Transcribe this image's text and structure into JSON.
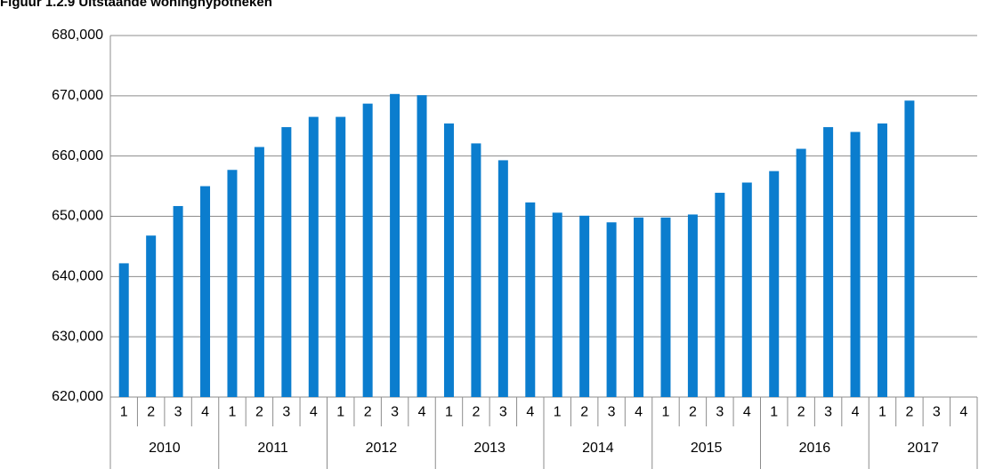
{
  "chart_data": {
    "type": "bar",
    "title": "Figuur 1.2.9 Uitstaande woninghypotheken",
    "categories": [
      "1",
      "2",
      "3",
      "4",
      "1",
      "2",
      "3",
      "4",
      "1",
      "2",
      "3",
      "4",
      "1",
      "2",
      "3",
      "4",
      "1",
      "2",
      "3",
      "4",
      "1",
      "2",
      "3",
      "4",
      "1",
      "2",
      "3",
      "4",
      "1",
      "2",
      "3",
      "4"
    ],
    "groups": [
      "2010",
      "2011",
      "2012",
      "2013",
      "2014",
      "2015",
      "2016",
      "2017"
    ],
    "values": [
      642200,
      646800,
      651700,
      655000,
      657700,
      661500,
      664800,
      666500,
      666500,
      668700,
      670300,
      670100,
      665400,
      662100,
      659300,
      652300,
      650600,
      650100,
      649000,
      649800,
      649800,
      650300,
      653900,
      655600,
      657500,
      661200,
      664800,
      664000,
      665400,
      669200,
      null,
      null
    ],
    "color": "#0b7dce",
    "ylim": [
      620000,
      680000
    ],
    "yticks": [
      {
        "value": 620000,
        "label": "620,000"
      },
      {
        "value": 630000,
        "label": "630,000"
      },
      {
        "value": 640000,
        "label": "640,000"
      },
      {
        "value": 650000,
        "label": "650,000"
      },
      {
        "value": 660000,
        "label": "660,000"
      },
      {
        "value": 670000,
        "label": "670,000"
      },
      {
        "value": 680000,
        "label": "680,000"
      }
    ],
    "grid": true
  }
}
